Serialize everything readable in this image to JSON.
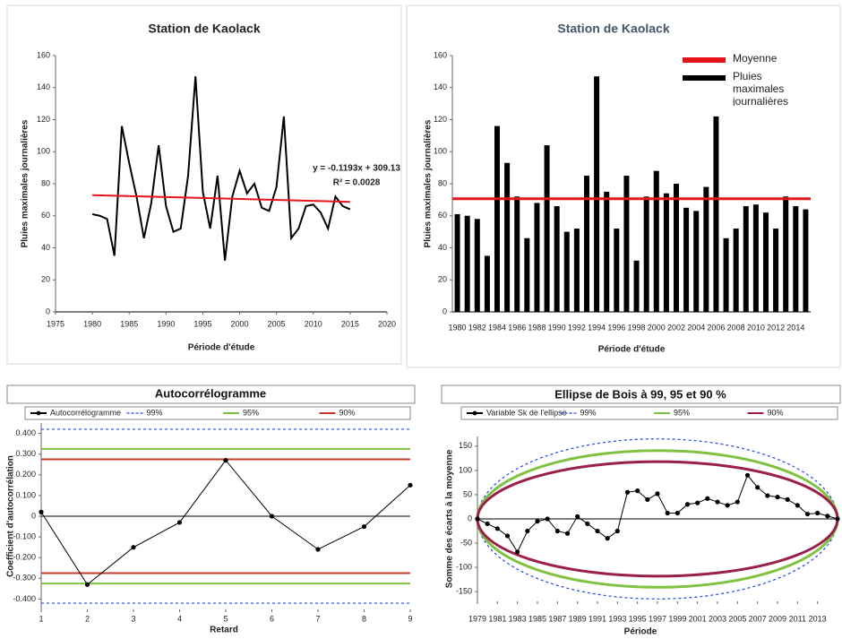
{
  "chart_data": [
    {
      "type": "line",
      "title": "Station de Kaolack",
      "x_label": "Période d'étude",
      "y_label": "Pluies maximales journalières",
      "x": [
        1980,
        1981,
        1982,
        1983,
        1984,
        1985,
        1986,
        1987,
        1988,
        1989,
        1990,
        1991,
        1992,
        1993,
        1994,
        1995,
        1996,
        1997,
        1998,
        1999,
        2000,
        2001,
        2002,
        2003,
        2004,
        2005,
        2006,
        2007,
        2008,
        2009,
        2010,
        2011,
        2012,
        2013,
        2014,
        2015
      ],
      "values": [
        61,
        60,
        58,
        35,
        116,
        93,
        72,
        46,
        68,
        104,
        66,
        50,
        52,
        85,
        147,
        75,
        52,
        85,
        32,
        72,
        88,
        74,
        80,
        65,
        63,
        78,
        122,
        46,
        52,
        66,
        67,
        62,
        52,
        72,
        66,
        64
      ],
      "color": "#000000",
      "trendline": {
        "color": "#e8141c",
        "x": [
          1980,
          2015
        ],
        "values": [
          72.9,
          68.7
        ]
      },
      "annotations": [
        "y = -0.1193x + 309.13",
        "R² = 0.0028"
      ],
      "xlim": [
        1975,
        2020
      ],
      "xticks": [
        1975,
        1980,
        1985,
        1990,
        1995,
        2000,
        2005,
        2010,
        2015,
        2020
      ],
      "ylim": [
        0,
        160
      ],
      "yticks": [
        0,
        20,
        40,
        60,
        80,
        100,
        120,
        140,
        160
      ]
    },
    {
      "type": "bar",
      "title": "Station de Kaolack",
      "x_label": "Période d'étude",
      "y_label": "Pluies maximales journalières",
      "categories": [
        "1980",
        null,
        "1982",
        null,
        "1984",
        null,
        "1986",
        null,
        "1988",
        null,
        "1990",
        null,
        "1992",
        null,
        "1994",
        null,
        "1996",
        null,
        "1998",
        null,
        "2000",
        null,
        "2002",
        null,
        "2004",
        null,
        "2006",
        null,
        "2008",
        null,
        "2010",
        null,
        "2012",
        null,
        "2014",
        null
      ],
      "series": [
        {
          "name": "Pluies maximales journalières",
          "color": "#000000",
          "values": [
            61,
            60,
            58,
            35,
            116,
            93,
            72,
            46,
            68,
            104,
            66,
            50,
            52,
            85,
            147,
            75,
            52,
            85,
            32,
            72,
            88,
            74,
            80,
            65,
            63,
            78,
            122,
            46,
            52,
            66,
            67,
            62,
            52,
            72,
            66,
            64
          ]
        }
      ],
      "hlines": [
        {
          "name": "Moyenne",
          "color": "#e8141c",
          "value": 70.6
        }
      ],
      "legend": "top-right",
      "ylim": [
        0,
        160
      ],
      "yticks": [
        0,
        20,
        40,
        60,
        80,
        100,
        120,
        140,
        160
      ]
    },
    {
      "type": "line",
      "title": "Autocorrélogramme",
      "x_label": "Retard",
      "y_label": "Coefficient d'autocorrélation",
      "x": [
        1,
        2,
        3,
        4,
        5,
        6,
        7,
        8,
        9
      ],
      "series": [
        {
          "name": "Autocorrélogramme",
          "color": "#000000",
          "values": [
            0.02,
            -0.33,
            -0.15,
            -0.03,
            0.27,
            0.0,
            -0.16,
            -0.05,
            0.15
          ]
        }
      ],
      "markers": true,
      "hlines": [
        {
          "name": "99%",
          "color": "#2244ee",
          "dash": true,
          "values": [
            0.42,
            -0.42
          ]
        },
        {
          "name": "95%",
          "color": "#7fc241",
          "values": [
            0.325,
            -0.325
          ]
        },
        {
          "name": "90%",
          "color": "#c0392b",
          "values": [
            0.275,
            -0.275
          ]
        }
      ],
      "legend": "top",
      "xlim": [
        1,
        9
      ],
      "xticks": [
        1,
        2,
        3,
        4,
        5,
        6,
        7,
        8,
        9
      ],
      "ylim": [
        -0.45,
        0.45
      ],
      "yticks": [
        {
          "value": -0.4,
          "label": "-0.400"
        },
        {
          "value": -0.3,
          "label": "-0.300"
        },
        {
          "value": -0.2,
          "label": "-0.200"
        },
        {
          "value": -0.1,
          "label": "-0.100"
        },
        0,
        {
          "value": 0.1,
          "label": "0.100"
        },
        {
          "value": 0.2,
          "label": "0.200"
        },
        {
          "value": 0.3,
          "label": "0.300"
        },
        {
          "value": 0.4,
          "label": "0.400"
        }
      ]
    },
    {
      "type": "line",
      "title": "Ellipse de Bois à 99, 95 et 90 %",
      "x_label": "Période",
      "y_label": "Somme des écarts à la moyenne",
      "x": [
        1979,
        1980,
        1981,
        1982,
        1983,
        1984,
        1985,
        1986,
        1987,
        1988,
        1989,
        1990,
        1991,
        1992,
        1993,
        1994,
        1995,
        1996,
        1997,
        1998,
        1999,
        2000,
        2001,
        2002,
        2003,
        2004,
        2005,
        2006,
        2007,
        2008,
        2009,
        2010,
        2011,
        2012,
        2013,
        2014,
        2015
      ],
      "series": [
        {
          "name": "Variable Sk de l'ellipse",
          "color": "#000000",
          "values": [
            0,
            -10,
            -20,
            -35,
            -68,
            -25,
            -5,
            0,
            -25,
            -30,
            5,
            -10,
            -25,
            -40,
            -25,
            55,
            58,
            40,
            52,
            12,
            12,
            30,
            33,
            42,
            35,
            28,
            35,
            90,
            65,
            48,
            45,
            40,
            28,
            10,
            12,
            6,
            0
          ]
        }
      ],
      "markers": true,
      "ellipses": [
        {
          "name": "99%",
          "color": "#2244ee",
          "dash": true,
          "half_height": 165
        },
        {
          "name": "95%",
          "color": "#7fc241",
          "half_height": 141
        },
        {
          "name": "90%",
          "color": "#9c1f4a",
          "half_height": 118
        }
      ],
      "legend": "top",
      "xlim": [
        1979,
        2015
      ],
      "xticks": [
        1979,
        1981,
        1983,
        1985,
        1987,
        1989,
        1991,
        1993,
        1995,
        1997,
        1999,
        2001,
        2003,
        2005,
        2007,
        2009,
        2011,
        2013
      ],
      "ylim": [
        -170,
        170
      ],
      "yticks": [
        -150,
        -100,
        -50,
        0,
        50,
        100,
        150
      ]
    }
  ]
}
